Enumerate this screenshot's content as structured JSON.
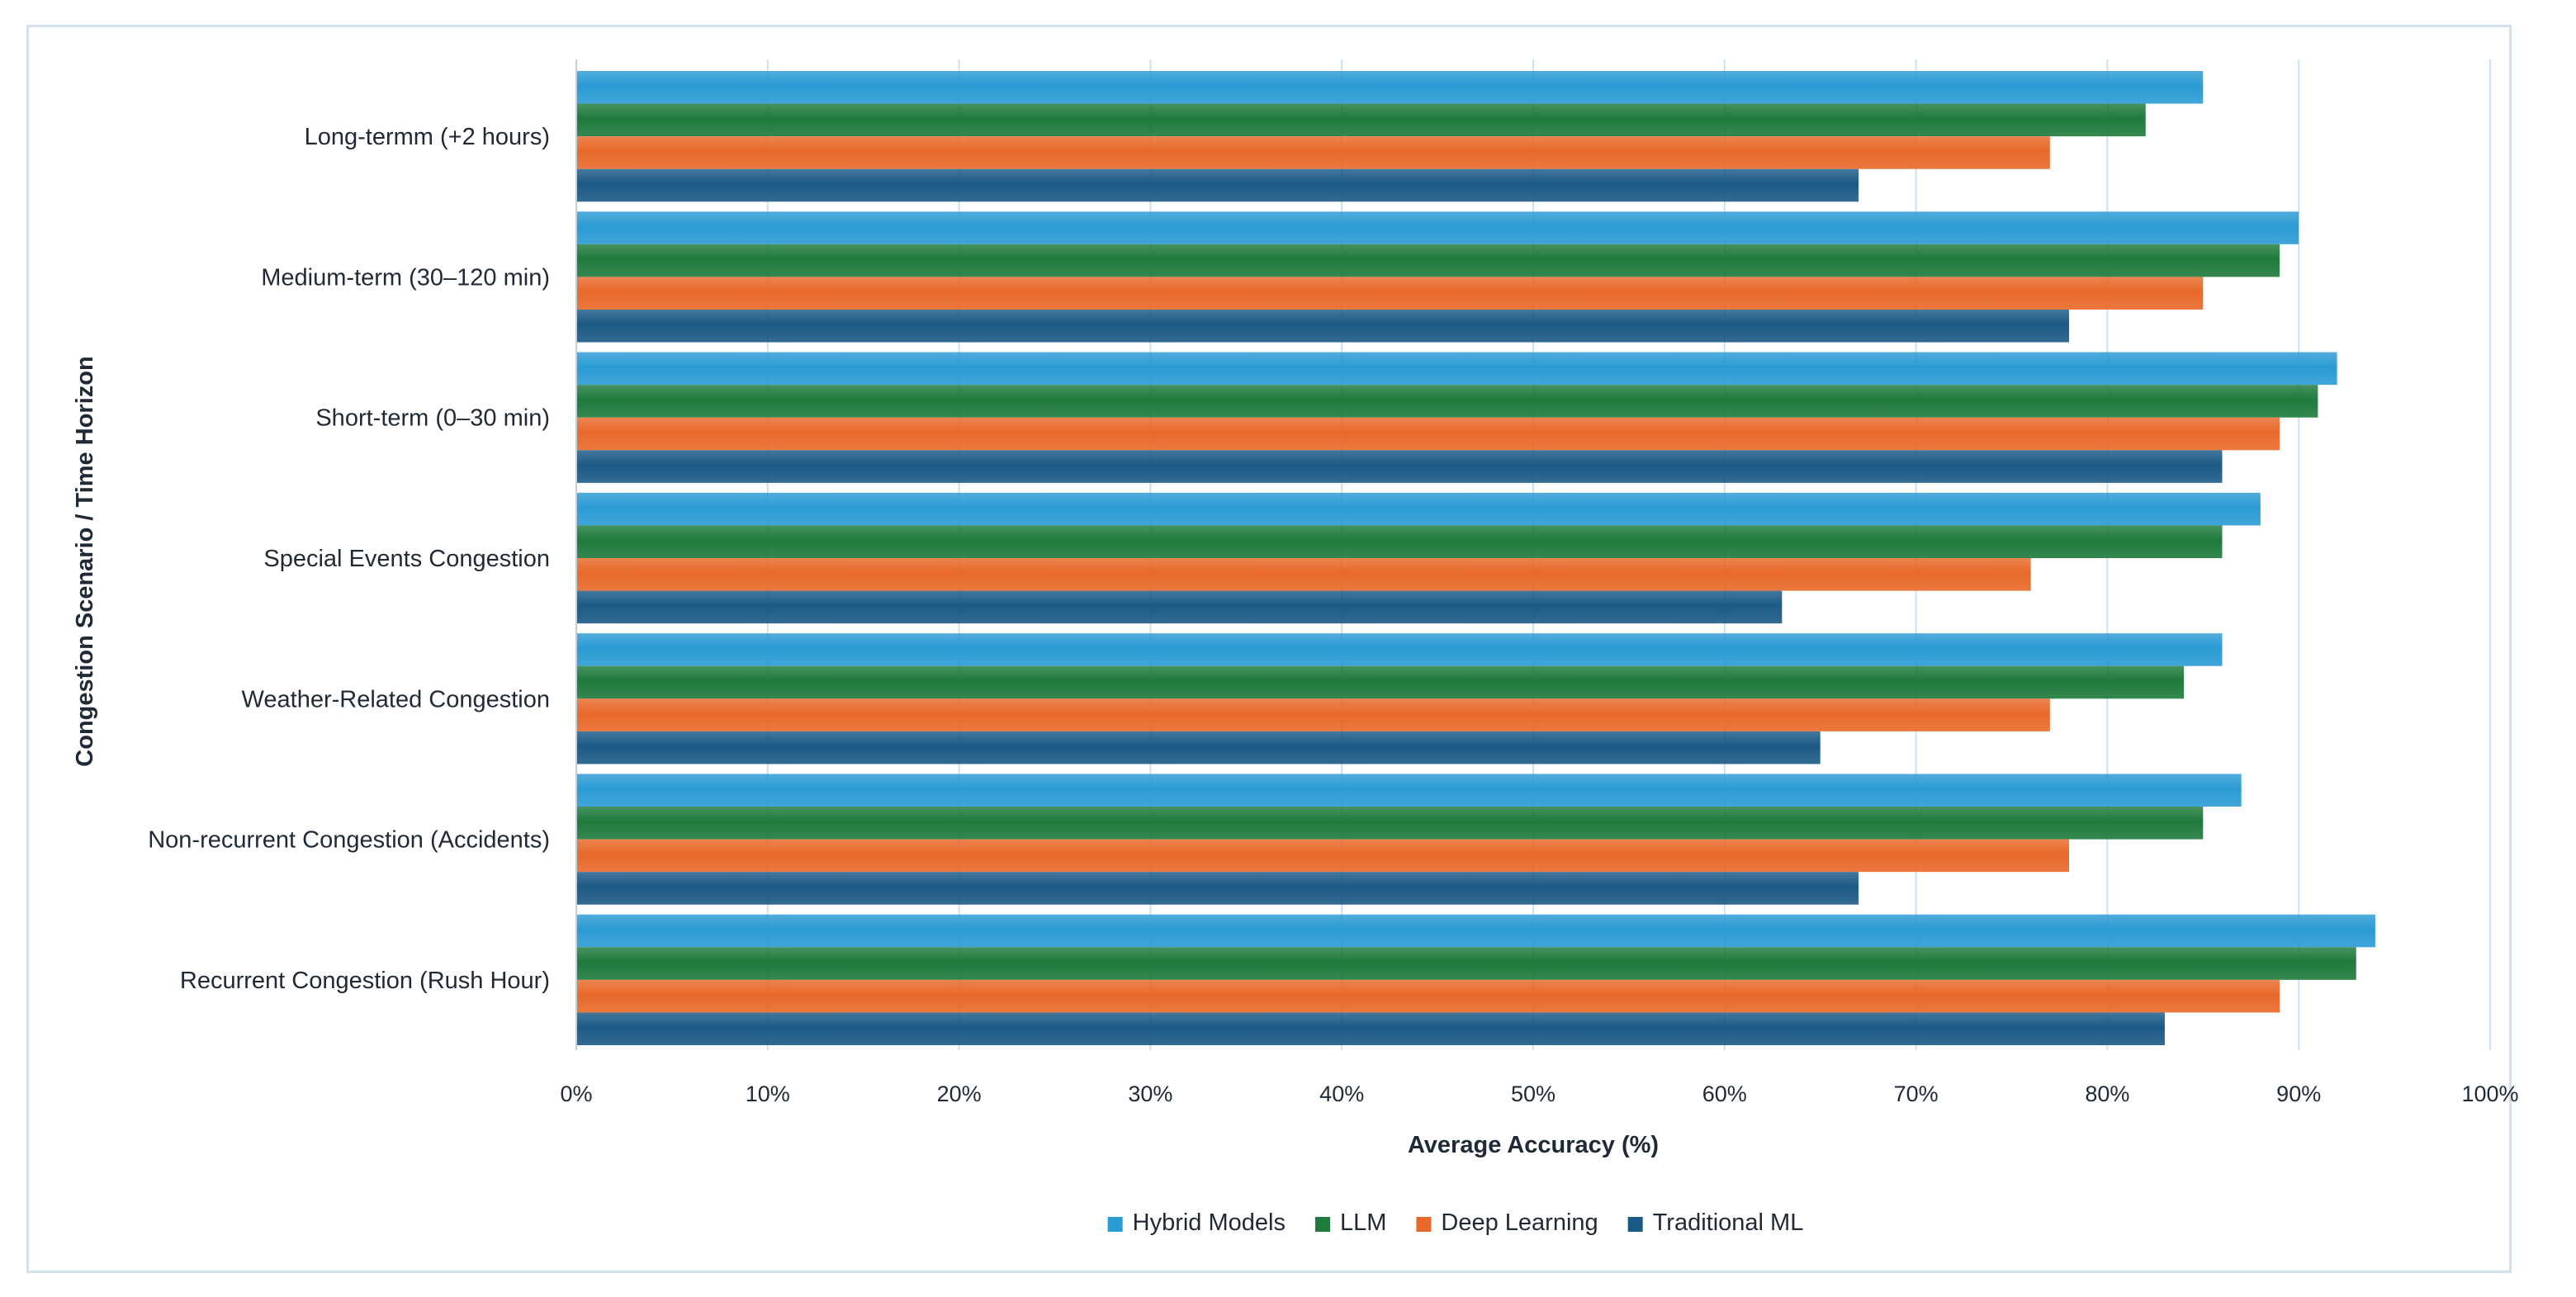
{
  "chart_data": {
    "type": "bar",
    "orientation": "horizontal",
    "title": "",
    "xlabel": "Average Accuracy (%)",
    "ylabel": "Congestion Scenario / Time Horizon",
    "xlim": [
      0,
      100
    ],
    "x_ticks": [
      "0%",
      "10%",
      "20%",
      "30%",
      "40%",
      "50%",
      "60%",
      "70%",
      "80%",
      "90%",
      "100%"
    ],
    "grid": "vertical",
    "legend_position": "bottom-center",
    "categories": [
      "Long-termm (+2 hours)",
      "Medium-term (30–120 min)",
      "Short-term (0–30 min)",
      "Special Events Congestion",
      "Weather-Related Congestion",
      "Non-recurrent Congestion (Accidents)",
      "Recurrent Congestion (Rush Hour)"
    ],
    "series": [
      {
        "name": "Hybrid Models",
        "color": "#2b9bd4",
        "values": [
          85,
          90,
          92,
          88,
          86,
          87,
          94
        ]
      },
      {
        "name": "LLM",
        "color": "#1f7a3c",
        "values": [
          82,
          89,
          91,
          86,
          84,
          85,
          93
        ]
      },
      {
        "name": "Deep Learning",
        "color": "#e8692a",
        "values": [
          77,
          85,
          89,
          76,
          77,
          78,
          89
        ]
      },
      {
        "name": "Traditional ML",
        "color": "#1c5a86",
        "values": [
          67,
          78,
          86,
          63,
          65,
          67,
          83
        ]
      }
    ]
  }
}
